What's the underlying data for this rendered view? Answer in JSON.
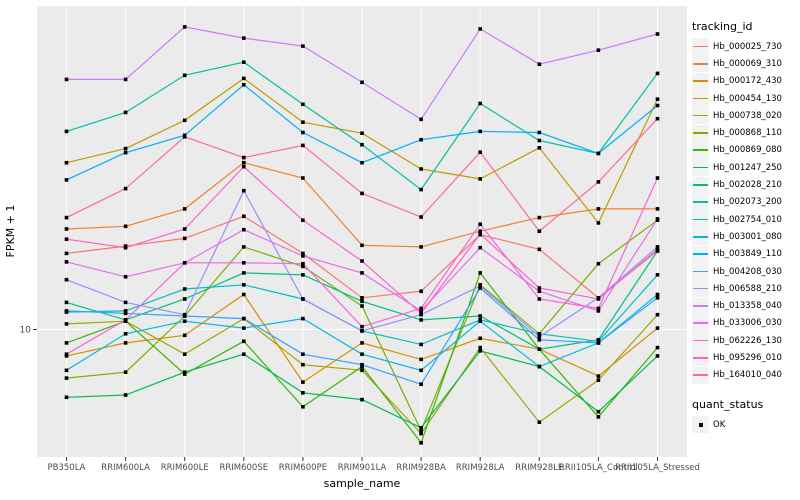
{
  "figure": {
    "background": "#FFFFFF",
    "panel_background": "#EBEBEB",
    "gridline_color": "#FFFFFF",
    "tick_color": "#333333",
    "axis_text_color": "#4D4D4D",
    "point_color": "#000000",
    "legend_key_background": "#F2F2F2"
  },
  "chart_data": {
    "type": "line",
    "title": "",
    "xlabel": "sample_name",
    "ylabel": "FPKM + 1",
    "y_scale": "log10",
    "y_ticks": [
      10
    ],
    "ylim": [
      4.07,
      97.8
    ],
    "grid": true,
    "legend_position": "right",
    "point_shape": "square",
    "categories": [
      "PB350LA",
      "RRIM600LA",
      "RRIM600LE",
      "RRIM600SE",
      "RRIM600PE",
      "RRIM901LA",
      "RRIM928BA",
      "RRIM928LA",
      "RRIM928LE",
      "RRII105LA_Control",
      "RRII105LA_Stressed"
    ],
    "series": [
      {
        "name": "Hb_000025_730",
        "color": "#F8766D",
        "values": [
          17.1,
          18.0,
          19.0,
          22.2,
          17.1,
          12.5,
          13.1,
          19.5,
          17.6,
          12.5,
          17.4
        ]
      },
      {
        "name": "Hb_000069_310",
        "color": "#EA8331",
        "values": [
          20.3,
          20.7,
          23.4,
          32.4,
          29.1,
          18.1,
          17.9,
          20.0,
          22.0,
          23.4,
          23.4
        ]
      },
      {
        "name": "Hb_000172_430",
        "color": "#D89000",
        "values": [
          8.3,
          9.1,
          9.6,
          12.8,
          6.9,
          9.1,
          8.1,
          9.4,
          8.7,
          7.2,
          10.1
        ]
      },
      {
        "name": "Hb_000454_130",
        "color": "#C09B00",
        "values": [
          32.4,
          35.8,
          43.7,
          58.7,
          43.1,
          39.9,
          31.0,
          28.9,
          36.0,
          21.2,
          50.7
        ]
      },
      {
        "name": "Hb_000738_020",
        "color": "#A3A500",
        "values": [
          10.4,
          10.6,
          8.4,
          10.8,
          7.8,
          7.5,
          4.8,
          8.8,
          5.2,
          7.0,
          11.1
        ]
      },
      {
        "name": "Hb_000868_110",
        "color": "#7CAE00",
        "values": [
          7.1,
          7.4,
          11.0,
          17.9,
          15.6,
          11.8,
          4.9,
          13.7,
          9.7,
          15.9,
          21.6
        ]
      },
      {
        "name": "Hb_000869_080",
        "color": "#39B600",
        "values": [
          9.1,
          10.6,
          7.3,
          9.2,
          5.8,
          7.7,
          4.5,
          14.9,
          8.7,
          5.4,
          8.8
        ]
      },
      {
        "name": "Hb_001247_250",
        "color": "#00BB4E",
        "values": [
          6.2,
          6.3,
          7.4,
          8.4,
          6.4,
          6.1,
          5.0,
          8.6,
          7.7,
          5.6,
          8.3
        ]
      },
      {
        "name": "Hb_002028_210",
        "color": "#00BF7D",
        "values": [
          12.1,
          10.7,
          12.4,
          14.9,
          14.7,
          12.2,
          10.7,
          11.0,
          8.7,
          9.3,
          17.4
        ]
      },
      {
        "name": "Hb_002073_200",
        "color": "#00C1A3",
        "values": [
          40.4,
          46.2,
          60.0,
          65.8,
          48.9,
          36.8,
          26.8,
          49.2,
          37.9,
          34.6,
          60.8
        ]
      },
      {
        "name": "Hb_002754_010",
        "color": "#00BFC4",
        "values": [
          11.3,
          11.4,
          13.3,
          13.7,
          12.4,
          9.9,
          9.0,
          10.7,
          9.7,
          9.2,
          14.7
        ]
      },
      {
        "name": "Hb_003001_080",
        "color": "#00BAE0",
        "values": [
          7.5,
          9.7,
          10.6,
          10.1,
          10.8,
          8.4,
          7.5,
          10.6,
          7.7,
          9.1,
          12.8
        ]
      },
      {
        "name": "Hb_003849_110",
        "color": "#00B0F6",
        "values": [
          28.7,
          34.8,
          39.3,
          56.1,
          40.1,
          32.4,
          38.1,
          40.4,
          40.1,
          34.6,
          48.5
        ]
      },
      {
        "name": "Hb_004208_030",
        "color": "#35A2FF",
        "values": [
          11.4,
          11.2,
          11.0,
          10.8,
          8.4,
          7.8,
          6.8,
          13.4,
          9.3,
          9.1,
          12.5
        ]
      },
      {
        "name": "Hb_006588_210",
        "color": "#9590FF",
        "values": [
          14.2,
          12.1,
          11.1,
          26.6,
          12.4,
          9.9,
          11.1,
          13.6,
          9.5,
          12.5,
          17.9
        ]
      },
      {
        "name": "Hb_013358_040",
        "color": "#C77CFF",
        "values": [
          58.3,
          58.3,
          84.4,
          78.0,
          73.7,
          57.1,
          44.0,
          83.2,
          64.9,
          71.6,
          80.3
        ]
      },
      {
        "name": "Hb_033006_030",
        "color": "#E76BF3",
        "values": [
          16.1,
          14.5,
          16.0,
          20.2,
          16.8,
          14.9,
          11.4,
          17.8,
          13.1,
          11.4,
          21.8
        ]
      },
      {
        "name": "Hb_062226_130",
        "color": "#FA62DB",
        "values": [
          8.4,
          10.7,
          16.0,
          16.0,
          15.9,
          10.2,
          11.6,
          21.0,
          12.4,
          11.6,
          29.1
        ]
      },
      {
        "name": "Hb_095296_010",
        "color": "#FF61CC",
        "values": [
          18.9,
          17.8,
          20.3,
          31.5,
          21.6,
          16.2,
          11.2,
          19.6,
          13.4,
          12.4,
          17.6
        ]
      },
      {
        "name": "Hb_164010_040",
        "color": "#FF6A98",
        "values": [
          22.0,
          27.0,
          38.9,
          33.6,
          36.6,
          26.1,
          22.1,
          34.9,
          20.0,
          28.3,
          44.2
        ]
      }
    ]
  },
  "legend": {
    "tracking_title": "tracking_id",
    "quant_title": "quant_status",
    "quant_items": [
      {
        "label": "OK",
        "shape": "square",
        "color": "#000000"
      }
    ]
  }
}
